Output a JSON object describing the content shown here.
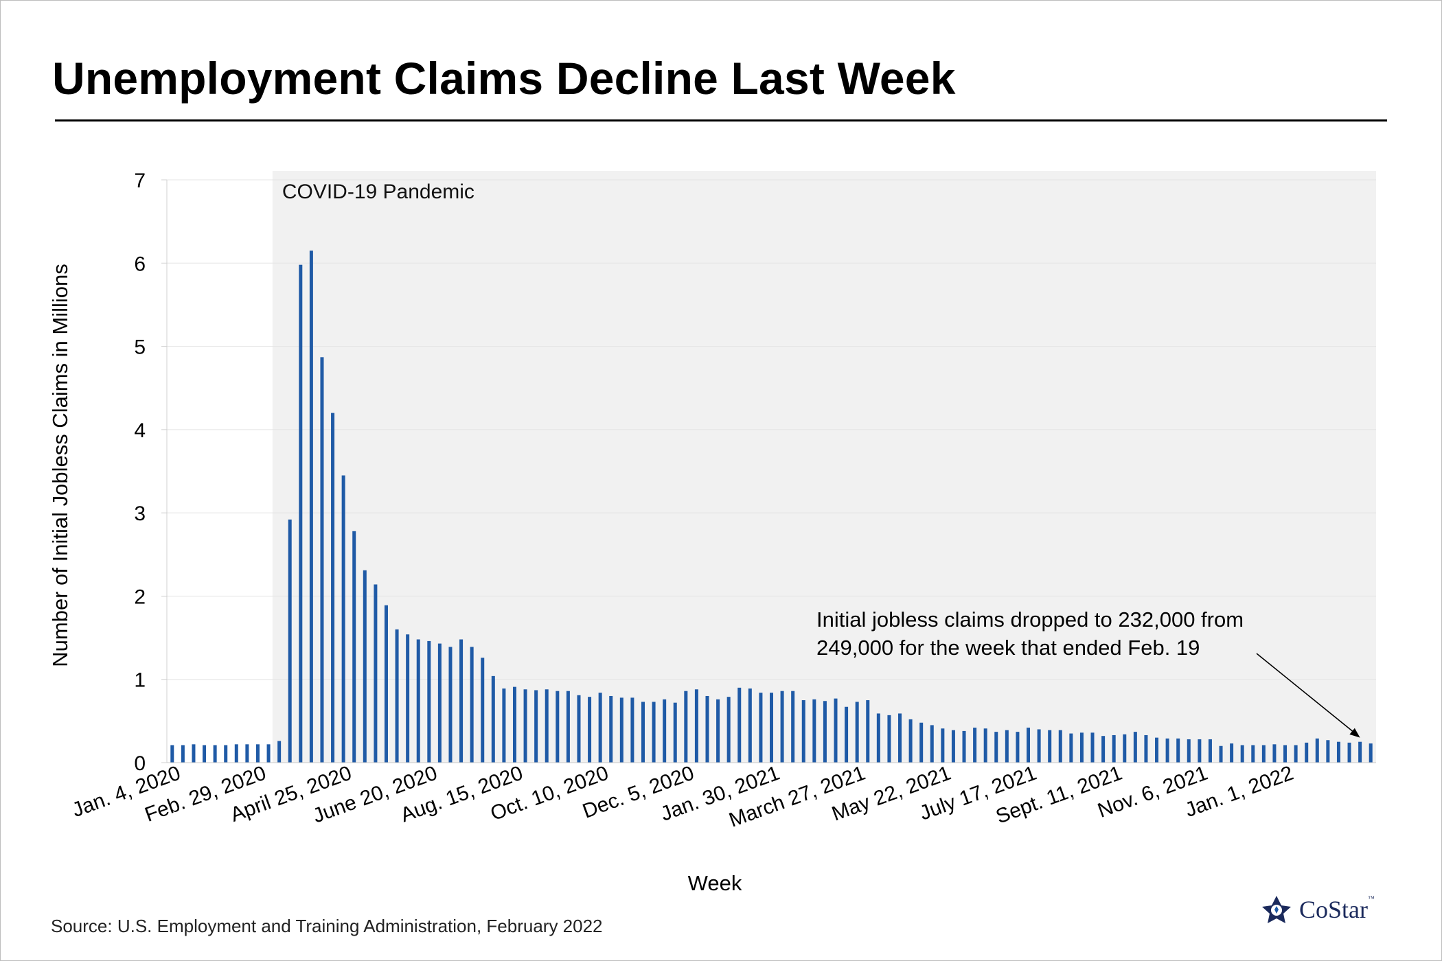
{
  "title": "Unemployment Claims Decline Last Week",
  "source": "Source: U.S. Employment and Training Administration, February 2022",
  "logo": {
    "text": "CoStar",
    "tm": "™"
  },
  "colors": {
    "bar": "#1f5aa6",
    "shade": "#f1f1f1",
    "grid": "#e4e4e4",
    "logo": "#1b2a5c"
  },
  "chart_data": {
    "type": "bar",
    "title": "Unemployment Claims Decline Last Week",
    "xlabel": "Week",
    "ylabel": "Number of Initial Jobless Claims in Millions",
    "ylim": [
      0,
      7
    ],
    "yticks": [
      0,
      1,
      2,
      3,
      4,
      5,
      6,
      7
    ],
    "xtick_labels": [
      {
        "label": "Jan. 4, 2020",
        "index": 0
      },
      {
        "label": "Feb. 29, 2020",
        "index": 8
      },
      {
        "label": "April 25, 2020",
        "index": 16
      },
      {
        "label": "June 20, 2020",
        "index": 24
      },
      {
        "label": "Aug. 15, 2020",
        "index": 32
      },
      {
        "label": "Oct. 10, 2020",
        "index": 40
      },
      {
        "label": "Dec. 5, 2020",
        "index": 48
      },
      {
        "label": "Jan. 30, 2021",
        "index": 56
      },
      {
        "label": "March 27, 2021",
        "index": 64
      },
      {
        "label": "May 22, 2021",
        "index": 72
      },
      {
        "label": "July 17, 2021",
        "index": 80
      },
      {
        "label": "Sept. 11, 2021",
        "index": 88
      },
      {
        "label": "Nov. 6, 2021",
        "index": 96
      },
      {
        "label": "Jan. 1, 2022",
        "index": 104
      }
    ],
    "shaded_region": {
      "label": "COVID-19 Pandemic",
      "start_index": 10,
      "end_index": 112
    },
    "annotation": {
      "lines": [
        "Initial jobless claims dropped to 232,000 from",
        "249,000 for the week that ended Feb. 19"
      ],
      "target_index": 111
    },
    "series": [
      {
        "name": "Initial jobless claims (millions)",
        "values": [
          0.21,
          0.21,
          0.22,
          0.21,
          0.21,
          0.21,
          0.22,
          0.22,
          0.22,
          0.22,
          0.26,
          2.92,
          5.98,
          6.15,
          4.87,
          4.2,
          3.45,
          2.78,
          2.31,
          2.14,
          1.89,
          1.6,
          1.54,
          1.48,
          1.46,
          1.43,
          1.39,
          1.48,
          1.39,
          1.26,
          1.04,
          0.89,
          0.91,
          0.88,
          0.87,
          0.88,
          0.86,
          0.86,
          0.81,
          0.79,
          0.84,
          0.8,
          0.78,
          0.78,
          0.73,
          0.73,
          0.76,
          0.72,
          0.86,
          0.88,
          0.8,
          0.76,
          0.79,
          0.9,
          0.89,
          0.84,
          0.84,
          0.86,
          0.86,
          0.75,
          0.76,
          0.74,
          0.77,
          0.67,
          0.73,
          0.75,
          0.59,
          0.57,
          0.59,
          0.52,
          0.48,
          0.45,
          0.41,
          0.39,
          0.38,
          0.42,
          0.41,
          0.37,
          0.39,
          0.37,
          0.42,
          0.4,
          0.39,
          0.39,
          0.35,
          0.36,
          0.36,
          0.32,
          0.33,
          0.34,
          0.37,
          0.33,
          0.3,
          0.29,
          0.29,
          0.28,
          0.28,
          0.28,
          0.2,
          0.23,
          0.21,
          0.21,
          0.21,
          0.22,
          0.21,
          0.21,
          0.24,
          0.29,
          0.27,
          0.25,
          0.24,
          0.25,
          0.23
        ]
      }
    ]
  }
}
